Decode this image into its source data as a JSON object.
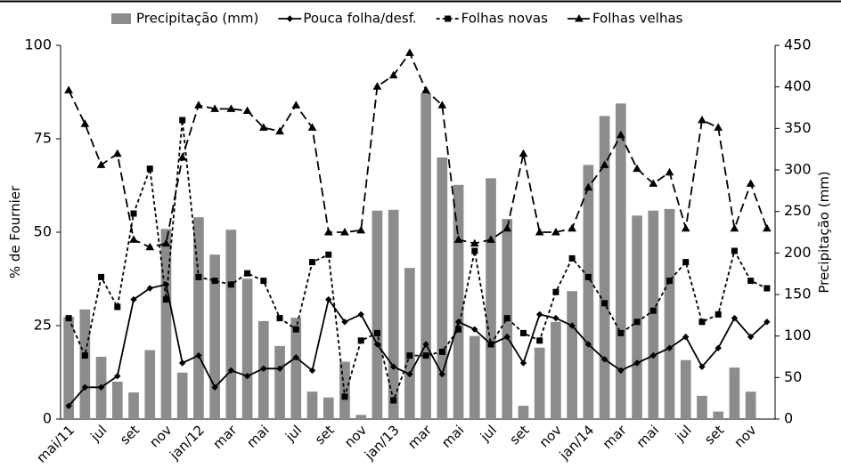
{
  "chart_data": {
    "type": "combo",
    "categories": [
      "mai/11",
      null,
      "jul",
      null,
      "set",
      null,
      "nov",
      null,
      "jan/12",
      null,
      "mar",
      null,
      "mai",
      null,
      "jul",
      null,
      "set",
      null,
      "nov",
      null,
      "jan/13",
      null,
      "mar",
      null,
      "mai",
      null,
      "jul",
      null,
      "set",
      null,
      "nov",
      null,
      "jan/14",
      null,
      "mar",
      null,
      "mai",
      null,
      "jul",
      null,
      "set",
      null,
      "nov",
      null
    ],
    "y_label": "% de Fournier",
    "y2_label": "Precipitação (mm)",
    "ylim": [
      0,
      100
    ],
    "yticks": [
      0,
      25,
      50,
      75,
      100
    ],
    "y2lim": [
      0,
      450
    ],
    "y2ticks": [
      0,
      50,
      100,
      150,
      200,
      250,
      300,
      350,
      400,
      450
    ],
    "legend": "top",
    "series": [
      {
        "name": "Precipitação (mm)",
        "type": "bar",
        "axis": "y2",
        "color": "#8c8c8c",
        "values": [
          123,
          132,
          75,
          45,
          32,
          83,
          229,
          56,
          243,
          198,
          228,
          169,
          118,
          88,
          122,
          33,
          26,
          69,
          5,
          251,
          252,
          182,
          392,
          315,
          282,
          100,
          290,
          241,
          16,
          86,
          117,
          154,
          306,
          365,
          380,
          245,
          251,
          253,
          71,
          28,
          9,
          62,
          33,
          null
        ]
      },
      {
        "name": "Pouca folha/desf.",
        "type": "line",
        "marker": "diamond",
        "dash": "none",
        "color": "#000000",
        "values": [
          3.5,
          8.5,
          8.5,
          11.5,
          32,
          35,
          36,
          15,
          17,
          8.5,
          13,
          11.5,
          13.5,
          13.5,
          16.5,
          13,
          32,
          26,
          28,
          20,
          14,
          12,
          20,
          12,
          26,
          24,
          20,
          22,
          15,
          28,
          27,
          25,
          20,
          16,
          13,
          15,
          17,
          19,
          22,
          14,
          19,
          27,
          22,
          26
        ]
      },
      {
        "name": "Folhas novas",
        "type": "line",
        "marker": "square",
        "dash": "4,3",
        "color": "#000000",
        "values": [
          27,
          17,
          38,
          30,
          55,
          67,
          32,
          80,
          38,
          37,
          36,
          39,
          37,
          27,
          24,
          42,
          44,
          6,
          21,
          23,
          5,
          17,
          17,
          18,
          24,
          45,
          20,
          27,
          23,
          21,
          34,
          43,
          38,
          31,
          23,
          26,
          29,
          37,
          42,
          26,
          28,
          45,
          37,
          35
        ]
      },
      {
        "name": "Folhas velhas",
        "type": "line",
        "marker": "triangle",
        "dash": "10,5",
        "color": "#000000",
        "values": [
          88,
          79,
          68,
          71,
          48,
          46,
          47,
          70,
          84,
          83,
          83,
          82.5,
          78,
          77,
          84,
          78,
          50,
          50,
          50.5,
          89,
          92,
          98,
          88,
          84,
          48,
          47,
          48,
          51,
          71,
          50,
          50,
          51,
          62,
          68,
          76,
          67,
          63,
          66,
          51,
          80,
          78,
          51,
          63,
          51
        ]
      }
    ]
  }
}
